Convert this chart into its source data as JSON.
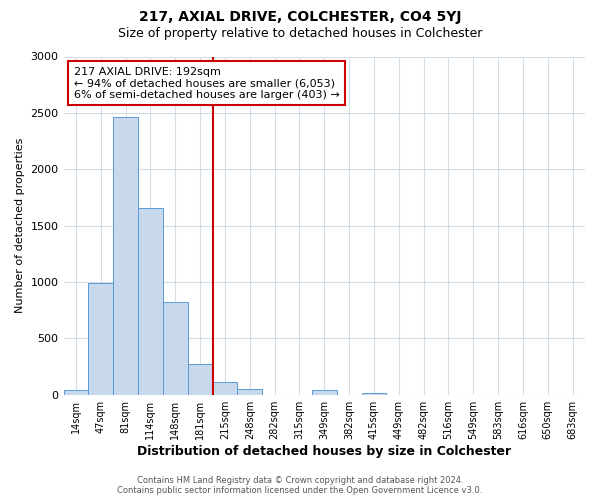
{
  "title1": "217, AXIAL DRIVE, COLCHESTER, CO4 5YJ",
  "title2": "Size of property relative to detached houses in Colchester",
  "xlabel": "Distribution of detached houses by size in Colchester",
  "ylabel": "Number of detached properties",
  "footer1": "Contains HM Land Registry data © Crown copyright and database right 2024.",
  "footer2": "Contains public sector information licensed under the Open Government Licence v3.0.",
  "bin_labels": [
    "14sqm",
    "47sqm",
    "81sqm",
    "114sqm",
    "148sqm",
    "181sqm",
    "215sqm",
    "248sqm",
    "282sqm",
    "315sqm",
    "349sqm",
    "382sqm",
    "415sqm",
    "449sqm",
    "482sqm",
    "516sqm",
    "549sqm",
    "583sqm",
    "616sqm",
    "650sqm",
    "683sqm"
  ],
  "bar_heights": [
    40,
    990,
    2460,
    1660,
    820,
    270,
    115,
    50,
    0,
    0,
    40,
    0,
    15,
    0,
    0,
    0,
    0,
    0,
    0,
    0,
    0
  ],
  "bar_color": "#c8d9ed",
  "bar_edge_color": "#5b9bd5",
  "vline_color": "#cc0000",
  "annotation_box_text1": "217 AXIAL DRIVE: 192sqm",
  "annotation_box_text2": "← 94% of detached houses are smaller (6,053)",
  "annotation_box_text3": "6% of semi-detached houses are larger (403) →",
  "annotation_box_color": "#cc0000",
  "ylim": [
    0,
    3000
  ],
  "yticks": [
    0,
    500,
    1000,
    1500,
    2000,
    2500,
    3000
  ],
  "background_color": "#ffffff",
  "grid_color": "#d4dce8"
}
